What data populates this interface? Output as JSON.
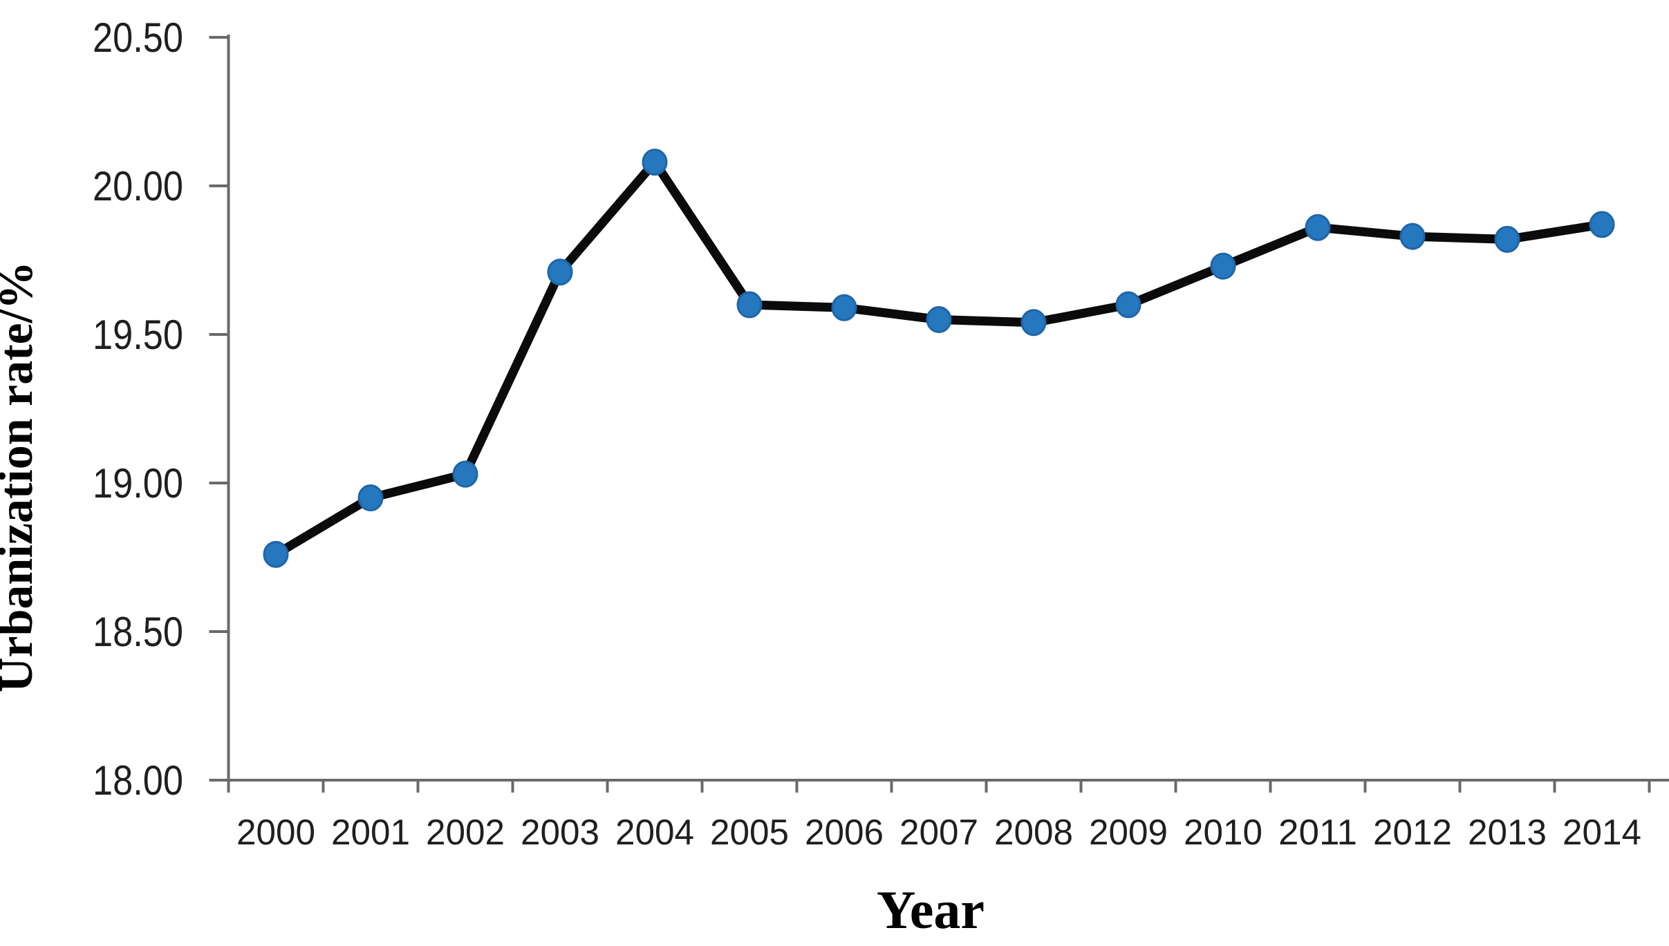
{
  "chart_data": {
    "type": "line",
    "title": "",
    "xlabel": "Year",
    "ylabel": "Urbanization rate/%",
    "categories": [
      "2000",
      "2001",
      "2002",
      "2003",
      "2004",
      "2005",
      "2006",
      "2007",
      "2008",
      "2009",
      "2010",
      "2011",
      "2012",
      "2013",
      "2014"
    ],
    "series": [
      {
        "name": "Urbanization rate",
        "values": [
          18.76,
          18.95,
          19.03,
          19.71,
          20.08,
          19.6,
          19.59,
          19.55,
          19.54,
          19.6,
          19.73,
          19.86,
          19.83,
          19.82,
          19.87
        ]
      }
    ],
    "ylim": [
      18.0,
      20.5
    ],
    "ytick_step": 0.5,
    "ytick_labels": [
      "18.00",
      "18.50",
      "19.00",
      "19.50",
      "20.00",
      "20.50"
    ],
    "grid": false,
    "legend": "none",
    "colors": {
      "line": "#0b0b0b",
      "marker_fill": "#2577BE",
      "marker_edge": "#1E65A7",
      "axis": "#6a6a6a",
      "tick_text": "#1f1f1f",
      "title_text": "#000000",
      "background": "#ffffff"
    }
  }
}
